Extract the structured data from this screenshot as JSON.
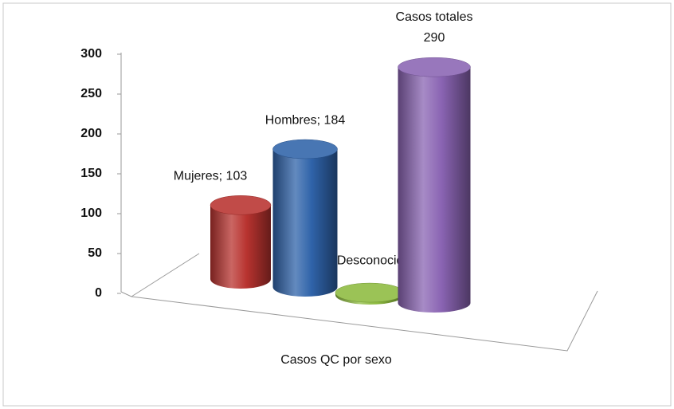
{
  "chart_data": {
    "type": "cylinder",
    "x_label": "Casos QC por sexo",
    "categories": [
      "Mujeres",
      "Hombres",
      "Desconocido",
      "Casos totales"
    ],
    "values": [
      103,
      184,
      3,
      290
    ],
    "value_labels": [
      "Mujeres; 103",
      "Hombres; 184",
      "Desconocido; 3",
      "Casos totales\n290"
    ],
    "colors": [
      "#b8332f",
      "#2f63a9",
      "#8dbb3f",
      "#8a64b3"
    ],
    "ylim": [
      0,
      300
    ],
    "yticks": [
      0,
      50,
      100,
      150,
      200,
      250,
      300
    ]
  }
}
